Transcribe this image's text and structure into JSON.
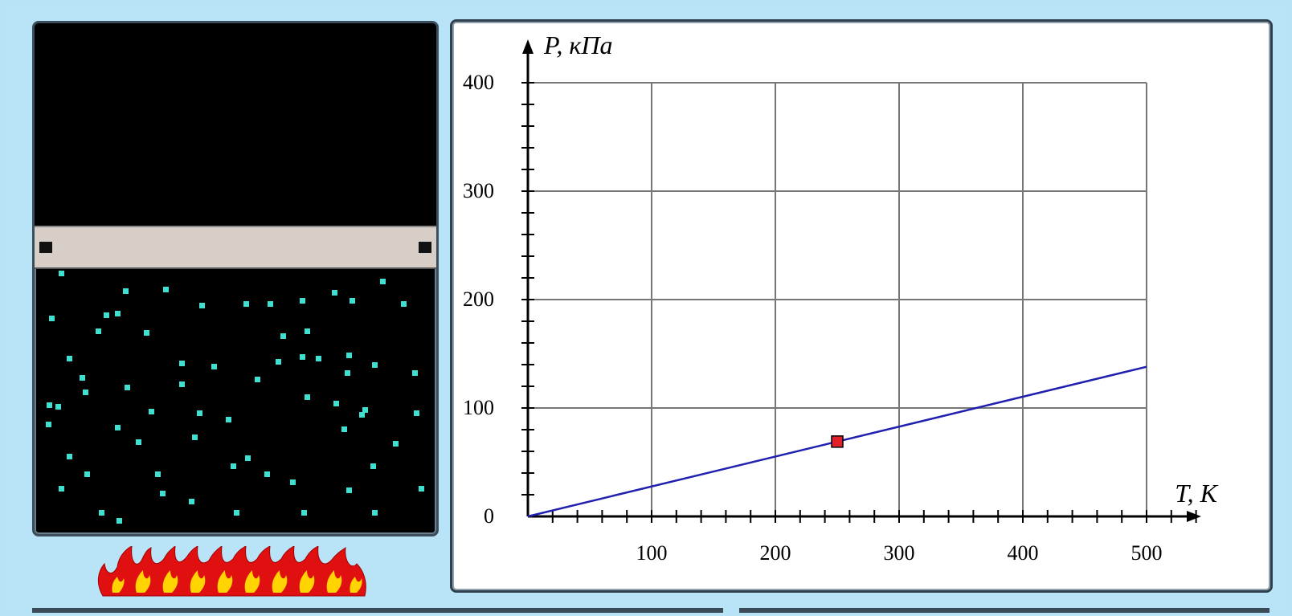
{
  "diagram": {
    "cylinder": {
      "molecule_color": "#40e0d0",
      "piston_color": "#d7cec8",
      "heater_icon": "flame-icon"
    },
    "graph": {
      "y_axis_label": "P, кПа",
      "x_axis_label": "T, K",
      "y_ticks": [
        "400",
        "300",
        "200",
        "100",
        "0"
      ],
      "x_ticks": [
        "100",
        "200",
        "300",
        "400",
        "500"
      ],
      "line_color": "#1f1fb0",
      "point_color": "#e0202a"
    }
  },
  "chart_data": {
    "type": "line",
    "title": "",
    "xlabel": "T, K",
    "ylabel": "P, кПа",
    "xlim": [
      0,
      500
    ],
    "ylim": [
      0,
      400
    ],
    "grid": true,
    "series": [
      {
        "x": [
          0,
          500
        ],
        "y": [
          0,
          138
        ]
      }
    ],
    "current_point": {
      "x": 250,
      "y": 69
    }
  }
}
